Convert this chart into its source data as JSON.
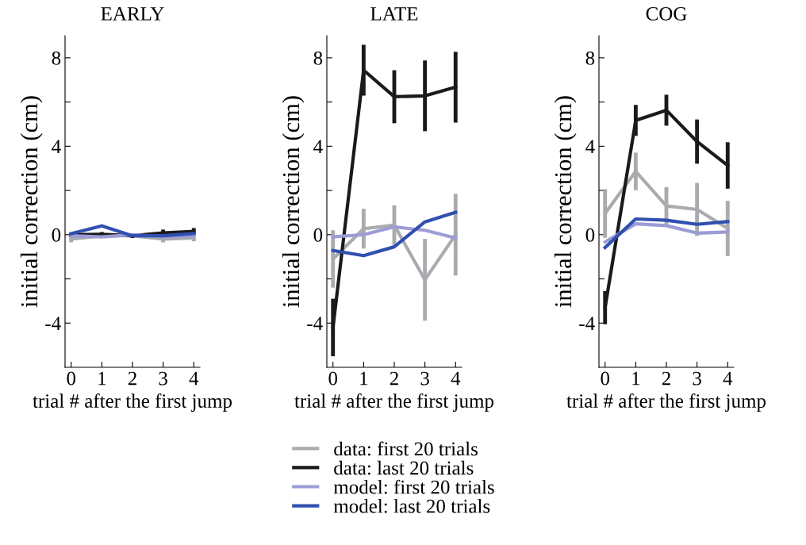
{
  "chart_data": [
    {
      "type": "line",
      "title": "EARLY",
      "xlabel": "trial # after the first jump",
      "ylabel": "initial correction (cm)",
      "x": [
        0,
        1,
        2,
        3,
        4
      ],
      "xlim": [
        -0.2,
        4.2
      ],
      "xticks": [
        0,
        1,
        2,
        3,
        4
      ],
      "ylim": [
        -6,
        9
      ],
      "yticks": [
        {
          "value": -4,
          "label": "-4"
        },
        {
          "value": -2,
          "label": null
        },
        0,
        {
          "value": 2,
          "label": null
        },
        4,
        {
          "value": 6,
          "label": null
        },
        8
      ],
      "grid": false,
      "marker": "none",
      "line_style": "solid",
      "series": [
        {
          "color": "#a9abae",
          "values": [
            -0.2,
            -0.05,
            -0.05,
            -0.2,
            -0.15
          ],
          "errors": [
            0.15,
            0.1,
            0.1,
            0.15,
            0.15
          ]
        },
        {
          "color": "#1a1a1a",
          "values": [
            0,
            0.02,
            -0.05,
            0.08,
            0.15
          ],
          "errors": [
            0.1,
            0.1,
            0.1,
            0.15,
            0.15
          ]
        },
        {
          "color": "#9c9cd6",
          "values": [
            -0.05,
            -0.1,
            0,
            -0.1,
            -0.05
          ]
        },
        {
          "color": "#3050b0",
          "values": [
            0.05,
            0.4,
            -0.05,
            -0.05,
            0.05
          ]
        }
      ]
    },
    {
      "type": "line",
      "title": "LATE",
      "xlabel": "trial # after the first jump",
      "ylabel": "initial correction (cm)",
      "x": [
        0,
        1,
        2,
        3,
        4
      ],
      "xlim": [
        -0.2,
        4.2
      ],
      "xticks": [
        0,
        1,
        2,
        3,
        4
      ],
      "ylim": [
        -6,
        9
      ],
      "yticks": [
        {
          "value": -4,
          "label": "-4"
        },
        {
          "value": -2,
          "label": null
        },
        0,
        {
          "value": 2,
          "label": null
        },
        4,
        {
          "value": 6,
          "label": null
        },
        8
      ],
      "grid": false,
      "legend": "bottom",
      "marker": "none",
      "line_style": "solid",
      "series": [
        {
          "name": "data: first 20 trials",
          "color": "#a9abae",
          "values": [
            -1.1,
            0.27,
            0.43,
            -2.04,
            0
          ],
          "errors": [
            1.3,
            0.9,
            0.9,
            1.85,
            1.85
          ]
        },
        {
          "name": "data: last 20 trials",
          "color": "#1a1a1a",
          "values": [
            -4.2,
            7.44,
            6.24,
            6.28,
            6.67
          ],
          "errors": [
            1.3,
            1.15,
            1.2,
            1.6,
            1.6
          ]
        },
        {
          "name": "model: first 20 trials",
          "color": "#9c9cd6",
          "values": [
            -0.1,
            0,
            0.35,
            0.2,
            -0.15
          ]
        },
        {
          "name": "model: last 20 trials",
          "color": "#3050b0",
          "values": [
            -0.72,
            -0.95,
            -0.55,
            0.58,
            1.01
          ]
        }
      ]
    },
    {
      "type": "line",
      "title": "COG",
      "xlabel": "trial # after the first jump",
      "ylabel": "initial correction (cm)",
      "x": [
        0,
        1,
        2,
        3,
        4
      ],
      "xlim": [
        -0.2,
        4.2
      ],
      "xticks": [
        0,
        1,
        2,
        3,
        4
      ],
      "ylim": [
        -6,
        9
      ],
      "yticks": [
        {
          "value": -4,
          "label": "-4"
        },
        {
          "value": -2,
          "label": null
        },
        0,
        {
          "value": 2,
          "label": null
        },
        4,
        {
          "value": 6,
          "label": null
        },
        8
      ],
      "grid": false,
      "marker": "none",
      "line_style": "solid",
      "series": [
        {
          "color": "#a9abae",
          "values": [
            0.96,
            2.86,
            1.3,
            1.14,
            0.28
          ],
          "errors": [
            1.1,
            0.85,
            0.85,
            1.2,
            1.25
          ]
        },
        {
          "color": "#1a1a1a",
          "values": [
            -3.3,
            5.17,
            5.63,
            4.21,
            3.13
          ],
          "errors": [
            0.75,
            0.7,
            0.7,
            1.0,
            1.05
          ]
        },
        {
          "color": "#9c9cd6",
          "values": [
            -0.33,
            0.49,
            0.41,
            0.07,
            0.12
          ]
        },
        {
          "color": "#3050b0",
          "values": [
            -0.58,
            0.71,
            0.65,
            0.47,
            0.59
          ]
        }
      ]
    }
  ]
}
